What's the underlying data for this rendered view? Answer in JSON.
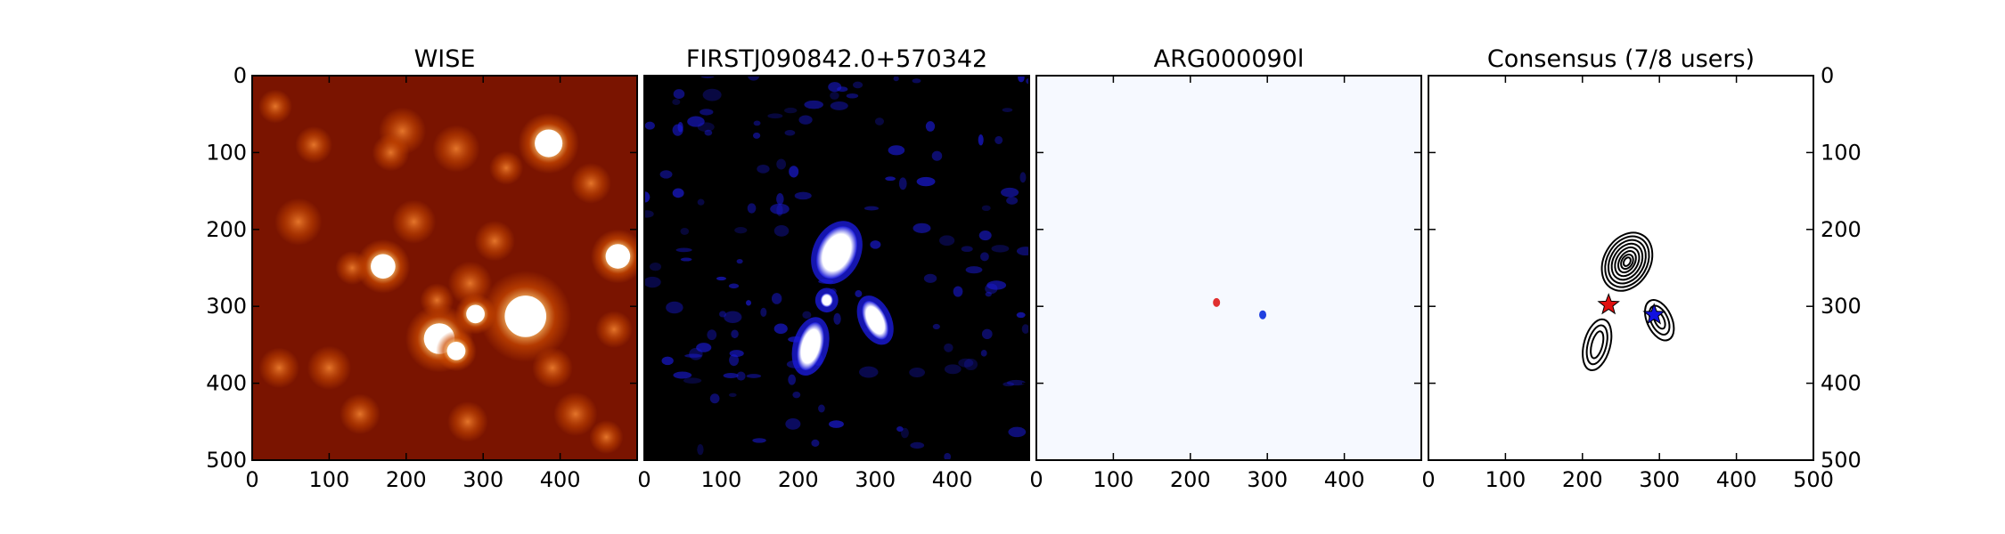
{
  "chart_data": [
    {
      "type": "heatmap",
      "title": "WISE",
      "colormap": "gist_heat",
      "colors": {
        "low": "#7a1400",
        "mid": "#cc4a00",
        "high": "#ffffff"
      },
      "xlim": [
        0,
        500
      ],
      "ylim": [
        500,
        0
      ],
      "xticks": [
        "0",
        "100",
        "200",
        "300",
        "400"
      ],
      "yticks": [
        "0",
        "100",
        "200",
        "300",
        "400",
        "500"
      ],
      "bright_sources": [
        {
          "x": 385,
          "y": 88,
          "r": 18,
          "level": 1.0
        },
        {
          "x": 170,
          "y": 248,
          "r": 16,
          "level": 1.0
        },
        {
          "x": 475,
          "y": 235,
          "r": 16,
          "level": 1.0
        },
        {
          "x": 355,
          "y": 313,
          "r": 27,
          "level": 1.0
        },
        {
          "x": 243,
          "y": 342,
          "r": 20,
          "level": 1.0
        },
        {
          "x": 265,
          "y": 358,
          "r": 12,
          "level": 0.9
        },
        {
          "x": 290,
          "y": 310,
          "r": 12,
          "level": 0.95
        },
        {
          "x": 283,
          "y": 270,
          "r": 13,
          "level": 0.8
        },
        {
          "x": 240,
          "y": 292,
          "r": 10,
          "level": 0.75
        },
        {
          "x": 195,
          "y": 72,
          "r": 14,
          "level": 0.7
        },
        {
          "x": 265,
          "y": 95,
          "r": 14,
          "level": 0.65
        },
        {
          "x": 180,
          "y": 100,
          "r": 11,
          "level": 0.6
        },
        {
          "x": 60,
          "y": 190,
          "r": 14,
          "level": 0.6
        },
        {
          "x": 210,
          "y": 190,
          "r": 13,
          "level": 0.55
        },
        {
          "x": 440,
          "y": 140,
          "r": 12,
          "level": 0.5
        },
        {
          "x": 315,
          "y": 215,
          "r": 12,
          "level": 0.5
        },
        {
          "x": 35,
          "y": 380,
          "r": 12,
          "level": 0.5
        },
        {
          "x": 100,
          "y": 380,
          "r": 13,
          "level": 0.5
        },
        {
          "x": 420,
          "y": 440,
          "r": 13,
          "level": 0.45
        },
        {
          "x": 140,
          "y": 440,
          "r": 12,
          "level": 0.45
        },
        {
          "x": 280,
          "y": 450,
          "r": 12,
          "level": 0.45
        },
        {
          "x": 80,
          "y": 90,
          "r": 11,
          "level": 0.4
        },
        {
          "x": 30,
          "y": 40,
          "r": 10,
          "level": 0.4
        },
        {
          "x": 330,
          "y": 120,
          "r": 10,
          "level": 0.4
        },
        {
          "x": 390,
          "y": 380,
          "r": 12,
          "level": 0.45
        },
        {
          "x": 470,
          "y": 330,
          "r": 11,
          "level": 0.45
        },
        {
          "x": 130,
          "y": 250,
          "r": 10,
          "level": 0.4
        },
        {
          "x": 460,
          "y": 470,
          "r": 10,
          "level": 0.35
        }
      ]
    },
    {
      "type": "heatmap",
      "title": "FIRSTJ090842.0+570342",
      "colormap": "blue-white",
      "colors": {
        "low": "#000000",
        "mid": "#1a1ad9",
        "high": "#ffffff"
      },
      "xlim": [
        0,
        500
      ],
      "ylim": [
        500,
        0
      ],
      "xticks": [
        "0",
        "100",
        "200",
        "300",
        "400"
      ],
      "yticks": [],
      "bright_sources": [
        {
          "x": 250,
          "y": 230,
          "rx": 24,
          "ry": 36,
          "rot": 25,
          "level": 1.0
        },
        {
          "x": 237,
          "y": 292,
          "rx": 8,
          "ry": 9,
          "rot": 0,
          "level": 1.0
        },
        {
          "x": 216,
          "y": 352,
          "rx": 16,
          "ry": 32,
          "rot": 15,
          "level": 1.0
        },
        {
          "x": 300,
          "y": 318,
          "rx": 14,
          "ry": 27,
          "rot": -25,
          "level": 1.0
        }
      ]
    },
    {
      "type": "heatmap",
      "title": "ARG000090l",
      "colors": {
        "background": "#f6f9ff",
        "red": "#e03030",
        "blue": "#2040e0"
      },
      "xlim": [
        0,
        500
      ],
      "ylim": [
        500,
        0
      ],
      "xticks": [
        "0",
        "100",
        "200",
        "300",
        "400"
      ],
      "yticks": [],
      "markers": [
        {
          "x": 234,
          "y": 295,
          "color": "red"
        },
        {
          "x": 294,
          "y": 311,
          "color": "blue"
        }
      ]
    },
    {
      "type": "scatter",
      "title": "Consensus (7/8 users)",
      "xlim": [
        0,
        500
      ],
      "ylim": [
        500,
        0
      ],
      "xticks": [
        "0",
        "100",
        "200",
        "300",
        "400",
        "500"
      ],
      "yticks": [
        "0",
        "100",
        "200",
        "300",
        "400",
        "500"
      ],
      "yaxis_side": "right",
      "contours": [
        {
          "cx": 258,
          "cy": 242,
          "rx": [
            30,
            26,
            22,
            18,
            14,
            10,
            7,
            4
          ],
          "ry": [
            40,
            35,
            30,
            25,
            20,
            15,
            10,
            6
          ],
          "rot": 30
        },
        {
          "cx": 219,
          "cy": 350,
          "rx": [
            17,
            12,
            7
          ],
          "ry": [
            34,
            26,
            18
          ],
          "rot": 15
        },
        {
          "cx": 300,
          "cy": 318,
          "rx": [
            16,
            11,
            6
          ],
          "ry": [
            28,
            20,
            12
          ],
          "rot": -25
        }
      ],
      "points": [
        {
          "x": 234,
          "y": 298,
          "marker": "star",
          "color": "#e01010"
        },
        {
          "x": 293,
          "y": 311,
          "marker": "star",
          "color": "#1010e0"
        }
      ]
    }
  ]
}
